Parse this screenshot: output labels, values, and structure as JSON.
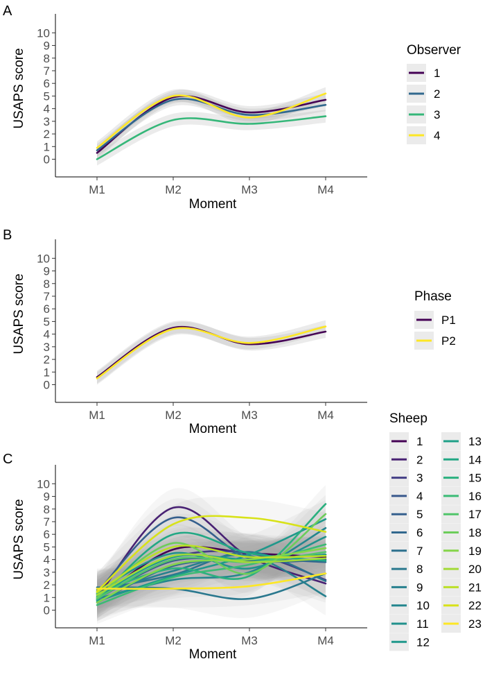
{
  "chart_data": [
    {
      "panel": "A",
      "type": "line",
      "xlabel": "Moment",
      "ylabel": "USAPS score",
      "categories": [
        "M1",
        "M2",
        "M3",
        "M4"
      ],
      "yticks": [
        "0",
        "1",
        "2",
        "3",
        "4",
        "5",
        "6",
        "7",
        "8",
        "9",
        "10"
      ],
      "ylim": [
        -1.4,
        11.5
      ],
      "legend_title": "Observer",
      "legend_position": "right",
      "series": [
        {
          "name": "1",
          "color": "#440154",
          "values": [
            0.5,
            4.9,
            3.7,
            4.7
          ]
        },
        {
          "name": "2",
          "color": "#31688E",
          "values": [
            0.7,
            4.7,
            3.5,
            4.3
          ]
        },
        {
          "name": "3",
          "color": "#35B779",
          "values": [
            0.0,
            3.1,
            2.8,
            3.4
          ]
        },
        {
          "name": "4",
          "color": "#FDE725",
          "values": [
            0.9,
            5.0,
            3.3,
            5.2
          ]
        }
      ]
    },
    {
      "panel": "B",
      "type": "line",
      "xlabel": "Moment",
      "ylabel": "USAPS score",
      "categories": [
        "M1",
        "M2",
        "M3",
        "M4"
      ],
      "yticks": [
        "0",
        "1",
        "2",
        "3",
        "4",
        "5",
        "6",
        "7",
        "8",
        "9",
        "10"
      ],
      "ylim": [
        -1.4,
        11.5
      ],
      "legend_title": "Phase",
      "legend_position": "right",
      "series": [
        {
          "name": "P1",
          "color": "#440154",
          "values": [
            0.6,
            4.5,
            3.2,
            4.2
          ]
        },
        {
          "name": "P2",
          "color": "#FDE725",
          "values": [
            0.5,
            4.4,
            3.3,
            4.6
          ]
        }
      ]
    },
    {
      "panel": "C",
      "type": "line",
      "xlabel": "Moment",
      "ylabel": "USAPS score",
      "categories": [
        "M1",
        "M2",
        "M3",
        "M4"
      ],
      "yticks": [
        "0",
        "1",
        "2",
        "3",
        "4",
        "5",
        "6",
        "7",
        "8",
        "9",
        "10"
      ],
      "ylim": [
        -1.4,
        11.5
      ],
      "legend_title": "Sheep",
      "legend_position": "right",
      "series": [
        {
          "name": "1",
          "color": "#440154",
          "values": [
            0.8,
            4.8,
            4.5,
            4.2
          ]
        },
        {
          "name": "2",
          "color": "#482173",
          "values": [
            1.0,
            8.1,
            4.2,
            2.1
          ]
        },
        {
          "name": "3",
          "color": "#433E85",
          "values": [
            1.3,
            4.2,
            4.5,
            2.4
          ]
        },
        {
          "name": "4",
          "color": "#38588C",
          "values": [
            0.9,
            3.9,
            3.9,
            4.4
          ]
        },
        {
          "name": "5",
          "color": "#355F8D",
          "values": [
            1.4,
            7.3,
            4.1,
            4.0
          ]
        },
        {
          "name": "6",
          "color": "#31688E",
          "values": [
            0.6,
            3.5,
            4.0,
            3.8
          ]
        },
        {
          "name": "7",
          "color": "#2D718E",
          "values": [
            1.6,
            2.8,
            4.6,
            2.3
          ]
        },
        {
          "name": "8",
          "color": "#2A788E",
          "values": [
            1.8,
            1.7,
            0.9,
            2.9
          ]
        },
        {
          "name": "9",
          "color": "#27808E",
          "values": [
            1.2,
            3.1,
            4.3,
            1.1
          ]
        },
        {
          "name": "10",
          "color": "#24868E",
          "values": [
            0.9,
            2.4,
            3.0,
            6.5
          ]
        },
        {
          "name": "11",
          "color": "#21918C",
          "values": [
            1.5,
            4.5,
            3.3,
            5.8
          ]
        },
        {
          "name": "12",
          "color": "#1F988B",
          "values": [
            0.7,
            2.7,
            4.4,
            7.2
          ]
        },
        {
          "name": "13",
          "color": "#1FA088",
          "values": [
            1.1,
            4.2,
            4.0,
            4.4
          ]
        },
        {
          "name": "14",
          "color": "#22A884",
          "values": [
            0.8,
            6.0,
            4.5,
            3.9
          ]
        },
        {
          "name": "15",
          "color": "#2BB07F",
          "values": [
            1.3,
            3.3,
            2.7,
            8.4
          ]
        },
        {
          "name": "16",
          "color": "#3BBB75",
          "values": [
            0.4,
            2.6,
            3.6,
            5.2
          ]
        },
        {
          "name": "17",
          "color": "#51C56A",
          "values": [
            0.9,
            4.0,
            3.8,
            4.6
          ]
        },
        {
          "name": "18",
          "color": "#6CCD5A",
          "values": [
            1.0,
            5.3,
            2.9,
            7.6
          ]
        },
        {
          "name": "19",
          "color": "#85D54A",
          "values": [
            0.6,
            3.6,
            4.0,
            4.9
          ]
        },
        {
          "name": "20",
          "color": "#A2DA37",
          "values": [
            1.2,
            4.3,
            3.8,
            4.1
          ]
        },
        {
          "name": "21",
          "color": "#BBDF27",
          "values": [
            1.4,
            5.0,
            4.2,
            4.3
          ]
        },
        {
          "name": "22",
          "color": "#D8E219",
          "values": [
            1.5,
            6.8,
            7.3,
            6.2
          ]
        },
        {
          "name": "23",
          "color": "#FDE725",
          "values": [
            1.7,
            1.7,
            1.9,
            2.9
          ]
        }
      ]
    }
  ]
}
